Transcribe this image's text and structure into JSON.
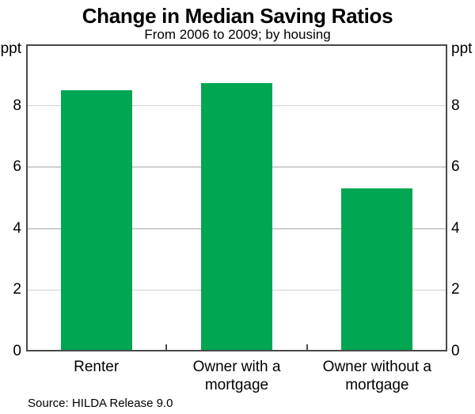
{
  "page": {
    "background": "#ffffff"
  },
  "chart_data": {
    "type": "bar",
    "title": "Change in Median Saving Ratios",
    "subtitle": "From 2006 to 2009; by housing",
    "categories": [
      "Renter",
      "Owner with a mortgage",
      "Owner without a mortgage"
    ],
    "values": [
      8.5,
      8.75,
      5.3
    ],
    "unit_label_left": "ppt",
    "unit_label_right": "ppt",
    "ylabel": "ppt",
    "ylim": [
      0,
      10
    ],
    "yticks": [
      0,
      2,
      4,
      6,
      8
    ],
    "grid": true,
    "legend": "none",
    "bar_color": "#00A651",
    "gridline_color": "#cfcfcf",
    "axis_color": "#48494b",
    "source": "Source: HILDA Release 9.0"
  }
}
